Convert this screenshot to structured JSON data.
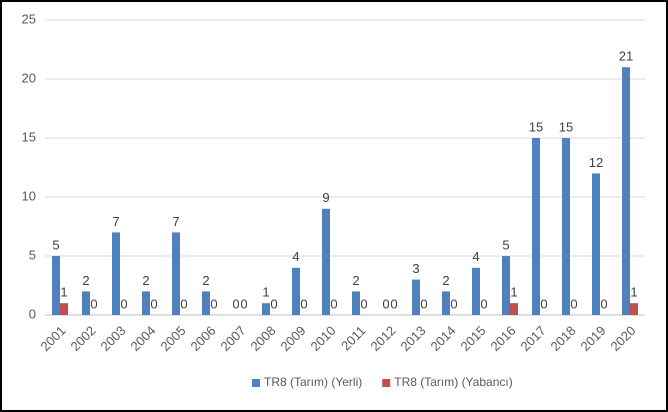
{
  "chart_data": {
    "type": "bar",
    "categories": [
      "2001",
      "2002",
      "2003",
      "2004",
      "2005",
      "2006",
      "2007",
      "2008",
      "2009",
      "2010",
      "2011",
      "2012",
      "2013",
      "2014",
      "2015",
      "2016",
      "2017",
      "2018",
      "2019",
      "2020"
    ],
    "series": [
      {
        "name": "TR8 (Tarım) (Yerli)",
        "color": "#4f81bd",
        "values": [
          5,
          2,
          7,
          2,
          7,
          2,
          0,
          1,
          4,
          9,
          2,
          0,
          3,
          2,
          4,
          5,
          15,
          15,
          12,
          21
        ]
      },
      {
        "name": "TR8 (Tarım) (Yabancı)",
        "color": "#c0504d",
        "values": [
          1,
          0,
          0,
          0,
          0,
          0,
          0,
          0,
          0,
          0,
          0,
          0,
          0,
          0,
          0,
          1,
          0,
          0,
          0,
          1
        ]
      }
    ],
    "ylim": [
      0,
      25
    ],
    "yticks": [
      0,
      5,
      10,
      15,
      20,
      25
    ],
    "grid": true,
    "legend": "bottom"
  }
}
